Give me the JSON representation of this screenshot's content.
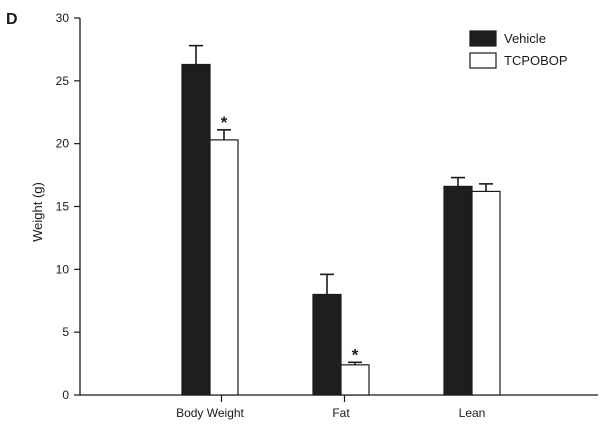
{
  "panel_label": "D",
  "chart_data": {
    "type": "bar",
    "title": "",
    "xlabel": "",
    "ylabel": "Weight (g)",
    "ylim": [
      0,
      30
    ],
    "yticks": [
      0,
      5,
      10,
      15,
      20,
      25,
      30
    ],
    "categories": [
      "Body Weight",
      "Fat",
      "Lean"
    ],
    "series": [
      {
        "name": "Vehicle",
        "values": [
          26.3,
          8.0,
          16.6
        ],
        "errors": [
          1.5,
          1.6,
          0.7
        ]
      },
      {
        "name": "TCPOBOP",
        "values": [
          20.3,
          2.4,
          16.2
        ],
        "errors": [
          0.8,
          0.2,
          0.6
        ]
      }
    ],
    "significance": [
      {
        "category": "Body Weight",
        "series": "TCPOBOP",
        "marker": "*"
      },
      {
        "category": "Fat",
        "series": "TCPOBOP",
        "marker": "*"
      }
    ],
    "legend_position": "top-right",
    "colors": {
      "Vehicle": "#1e1e1e",
      "TCPOBOP": "#ffffff",
      "outline": "#1a1a1a"
    }
  }
}
